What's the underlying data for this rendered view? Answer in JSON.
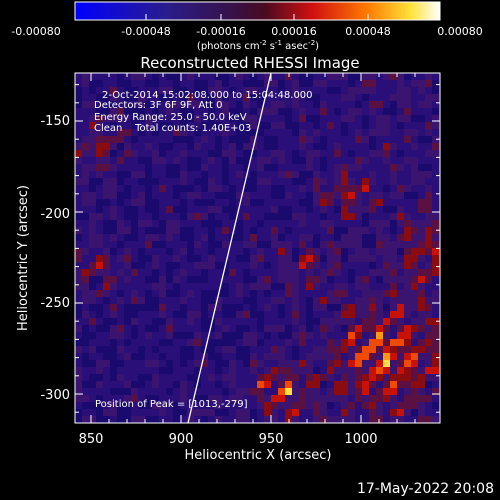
{
  "title": "Reconstructed RHESSI Image",
  "colorbar": {
    "ticks": [
      "-0.00080",
      "-0.00048",
      "-0.00016",
      "0.00016",
      "0.00048",
      "0.00080"
    ],
    "unit": {
      "pre": "(photons cm",
      "exp1": "-2",
      "mid1": " s",
      "exp2": "-1",
      "mid2": " asec",
      "exp3": "-2",
      "post": ")"
    },
    "colormap": "blue-purple-red-orange-yellow-white (diverging)",
    "range": [
      -0.0008,
      0.0008
    ]
  },
  "axes": {
    "xlabel": "Heliocentric X (arcsec)",
    "ylabel": "Heliocentric Y (arcsec)",
    "xticks": [
      "850",
      "900",
      "950",
      "1000"
    ],
    "yticks": [
      "-150",
      "-200",
      "-250",
      "-300"
    ],
    "xlim": [
      840,
      1035
    ],
    "ylim": [
      -320,
      -125
    ]
  },
  "annotations": {
    "time": "2-Oct-2014 15:02:08.000 to 15:04:48.000",
    "detectors": "Detectors: 3F 6F 9F, Att 0",
    "energy": "Energy Range: 25.0 - 50.0 keV",
    "clean": "Clean    Total counts: 1.40E+03",
    "peak": "Position of Peak = [1013,-279]"
  },
  "timestamp": "17-May-2022 20:08"
}
